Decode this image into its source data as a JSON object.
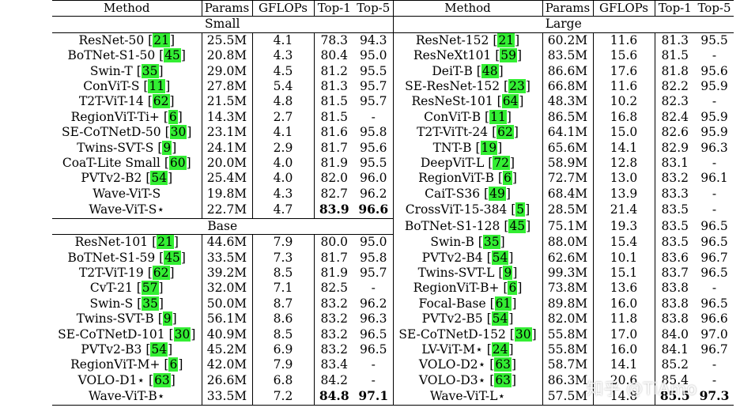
{
  "header": [
    "Method",
    "Params",
    "GFLOPs",
    "Top-1",
    "Top-5"
  ],
  "sections": {
    "small": "Small",
    "base": "Base",
    "large": "Large"
  },
  "left_small": [
    {
      "method": "ResNet-50",
      "cite": "21",
      "params": "25.5M",
      "gflops": "4.1",
      "top1": "78.3",
      "top5": "94.3"
    },
    {
      "method": "BoTNet-S1-50",
      "cite": "45",
      "params": "20.8M",
      "gflops": "4.3",
      "top1": "80.4",
      "top5": "95.0"
    },
    {
      "method": "Swin-T",
      "cite": "35",
      "params": "29.0M",
      "gflops": "4.5",
      "top1": "81.2",
      "top5": "95.5"
    },
    {
      "method": "ConViT-S",
      "cite": "11",
      "params": "27.8M",
      "gflops": "5.4",
      "top1": "81.3",
      "top5": "95.7"
    },
    {
      "method": "T2T-ViT-14",
      "cite": "62",
      "params": "21.5M",
      "gflops": "4.8",
      "top1": "81.5",
      "top5": "95.7"
    },
    {
      "method": "RegionViT-Ti+",
      "cite": "6",
      "params": "14.3M",
      "gflops": "2.7",
      "top1": "81.5",
      "top5": "-"
    },
    {
      "method": "SE-CoTNetD-50",
      "cite": "30",
      "params": "23.1M",
      "gflops": "4.1",
      "top1": "81.6",
      "top5": "95.8"
    },
    {
      "method": "Twins-SVT-S",
      "cite": "9",
      "params": "24.1M",
      "gflops": "2.9",
      "top1": "81.7",
      "top5": "95.6"
    },
    {
      "method": "CoaT-Lite Small",
      "cite": "60",
      "params": "20.0M",
      "gflops": "4.0",
      "top1": "81.9",
      "top5": "95.5"
    },
    {
      "method": "PVTv2-B2",
      "cite": "54",
      "params": "25.4M",
      "gflops": "4.0",
      "top1": "82.0",
      "top5": "96.0"
    },
    {
      "method": "Wave-ViT-S",
      "cite": "",
      "params": "19.8M",
      "gflops": "4.3",
      "top1": "82.7",
      "top5": "96.2"
    },
    {
      "method": "Wave-ViT-S⋆",
      "cite": "",
      "params": "22.7M",
      "gflops": "4.7",
      "top1": "83.9",
      "top5": "96.6",
      "bold": true
    }
  ],
  "left_base": [
    {
      "method": "ResNet-101",
      "cite": "21",
      "params": "44.6M",
      "gflops": "7.9",
      "top1": "80.0",
      "top5": "95.0"
    },
    {
      "method": "BoTNet-S1-59",
      "cite": "45",
      "params": "33.5M",
      "gflops": "7.3",
      "top1": "81.7",
      "top5": "95.8"
    },
    {
      "method": "T2T-ViT-19",
      "cite": "62",
      "params": "39.2M",
      "gflops": "8.5",
      "top1": "81.9",
      "top5": "95.7"
    },
    {
      "method": "CvT-21",
      "cite": "57",
      "params": "32.0M",
      "gflops": "7.1",
      "top1": "82.5",
      "top5": "-"
    },
    {
      "method": "Swin-S",
      "cite": "35",
      "params": "50.0M",
      "gflops": "8.7",
      "top1": "83.2",
      "top5": "96.2"
    },
    {
      "method": "Twins-SVT-B",
      "cite": "9",
      "params": "56.1M",
      "gflops": "8.6",
      "top1": "83.2",
      "top5": "96.3"
    },
    {
      "method": "SE-CoTNetD-101",
      "cite": "30",
      "params": "40.9M",
      "gflops": "8.5",
      "top1": "83.2",
      "top5": "96.5"
    },
    {
      "method": "PVTv2-B3",
      "cite": "54",
      "params": "45.2M",
      "gflops": "6.9",
      "top1": "83.2",
      "top5": "96.5"
    },
    {
      "method": "RegionViT-M+",
      "cite": "6",
      "params": "42.0M",
      "gflops": "7.9",
      "top1": "83.4",
      "top5": "-"
    },
    {
      "method": "VOLO-D1⋆",
      "cite": "63",
      "params": "26.6M",
      "gflops": "6.8",
      "top1": "84.2",
      "top5": "-"
    },
    {
      "method": "Wave-ViT-B⋆",
      "cite": "",
      "params": "33.5M",
      "gflops": "7.2",
      "top1": "84.8",
      "top5": "97.1",
      "bold": true
    }
  ],
  "right_large": [
    {
      "method": "ResNet-152",
      "cite": "21",
      "params": "60.2M",
      "gflops": "11.6",
      "top1": "81.3",
      "top5": "95.5"
    },
    {
      "method": "ResNeXt101",
      "cite": "59",
      "params": "83.5M",
      "gflops": "15.6",
      "top1": "81.5",
      "top5": "-"
    },
    {
      "method": "DeiT-B",
      "cite": "48",
      "params": "86.6M",
      "gflops": "17.6",
      "top1": "81.8",
      "top5": "95.6"
    },
    {
      "method": "SE-ResNet-152",
      "cite": "23",
      "params": "66.8M",
      "gflops": "11.6",
      "top1": "82.2",
      "top5": "95.9"
    },
    {
      "method": "ResNeSt-101",
      "cite": "64",
      "params": "48.3M",
      "gflops": "10.2",
      "top1": "82.3",
      "top5": "-"
    },
    {
      "method": "ConViT-B",
      "cite": "11",
      "params": "86.5M",
      "gflops": "16.8",
      "top1": "82.4",
      "top5": "95.9"
    },
    {
      "method": "T2T-ViTt-24",
      "cite": "62",
      "params": "64.1M",
      "gflops": "15.0",
      "top1": "82.6",
      "top5": "95.9"
    },
    {
      "method": "TNT-B",
      "cite": "19",
      "params": "65.6M",
      "gflops": "14.1",
      "top1": "82.9",
      "top5": "96.3"
    },
    {
      "method": "DeepViT-L",
      "cite": "72",
      "params": "58.9M",
      "gflops": "12.8",
      "top1": "83.1",
      "top5": "-"
    },
    {
      "method": "RegionViT-B",
      "cite": "6",
      "params": "72.7M",
      "gflops": "13.0",
      "top1": "83.2",
      "top5": "96.1"
    },
    {
      "method": "CaiT-S36",
      "cite": "49",
      "params": "68.4M",
      "gflops": "13.9",
      "top1": "83.3",
      "top5": "-"
    },
    {
      "method": "CrossViT-15-384",
      "cite": "5",
      "params": "28.5M",
      "gflops": "21.4",
      "top1": "83.5",
      "top5": "-"
    },
    {
      "method": "BoTNet-S1-128",
      "cite": "45",
      "params": "75.1M",
      "gflops": "19.3",
      "top1": "83.5",
      "top5": "96.5"
    },
    {
      "method": "Swin-B",
      "cite": "35",
      "params": "88.0M",
      "gflops": "15.4",
      "top1": "83.5",
      "top5": "96.5"
    },
    {
      "method": "PVTv2-B4",
      "cite": "54",
      "params": "62.6M",
      "gflops": "10.1",
      "top1": "83.6",
      "top5": "96.7"
    },
    {
      "method": "Twins-SVT-L",
      "cite": "9",
      "params": "99.3M",
      "gflops": "15.1",
      "top1": "83.7",
      "top5": "96.5"
    },
    {
      "method": "RegionViT-B+",
      "cite": "6",
      "params": "73.8M",
      "gflops": "13.6",
      "top1": "83.8",
      "top5": "-"
    },
    {
      "method": "Focal-Base",
      "cite": "61",
      "params": "89.8M",
      "gflops": "16.0",
      "top1": "83.8",
      "top5": "96.5"
    },
    {
      "method": "PVTv2-B5",
      "cite": "54",
      "params": "82.0M",
      "gflops": "11.8",
      "top1": "83.8",
      "top5": "96.6"
    },
    {
      "method": "SE-CoTNetD-152",
      "cite": "30",
      "params": "55.8M",
      "gflops": "17.0",
      "top1": "84.0",
      "top5": "97.0"
    },
    {
      "method": "LV-ViT-M⋆",
      "cite": "24",
      "params": "55.8M",
      "gflops": "16.0",
      "top1": "84.1",
      "top5": "96.7"
    },
    {
      "method": "VOLO-D2⋆",
      "cite": "63",
      "params": "58.7M",
      "gflops": "14.1",
      "top1": "85.2",
      "top5": "-"
    },
    {
      "method": "VOLO-D3⋆",
      "cite": "63",
      "params": "86.3M",
      "gflops": "20.6",
      "top1": "85.4",
      "top5": "-"
    },
    {
      "method": "Wave-ViT-L⋆",
      "cite": "",
      "params": "57.5M",
      "gflops": "14.8",
      "top1": "85.5",
      "top5": "97.3",
      "bold": true
    }
  ],
  "watermark": "知乎 @TiAmo"
}
